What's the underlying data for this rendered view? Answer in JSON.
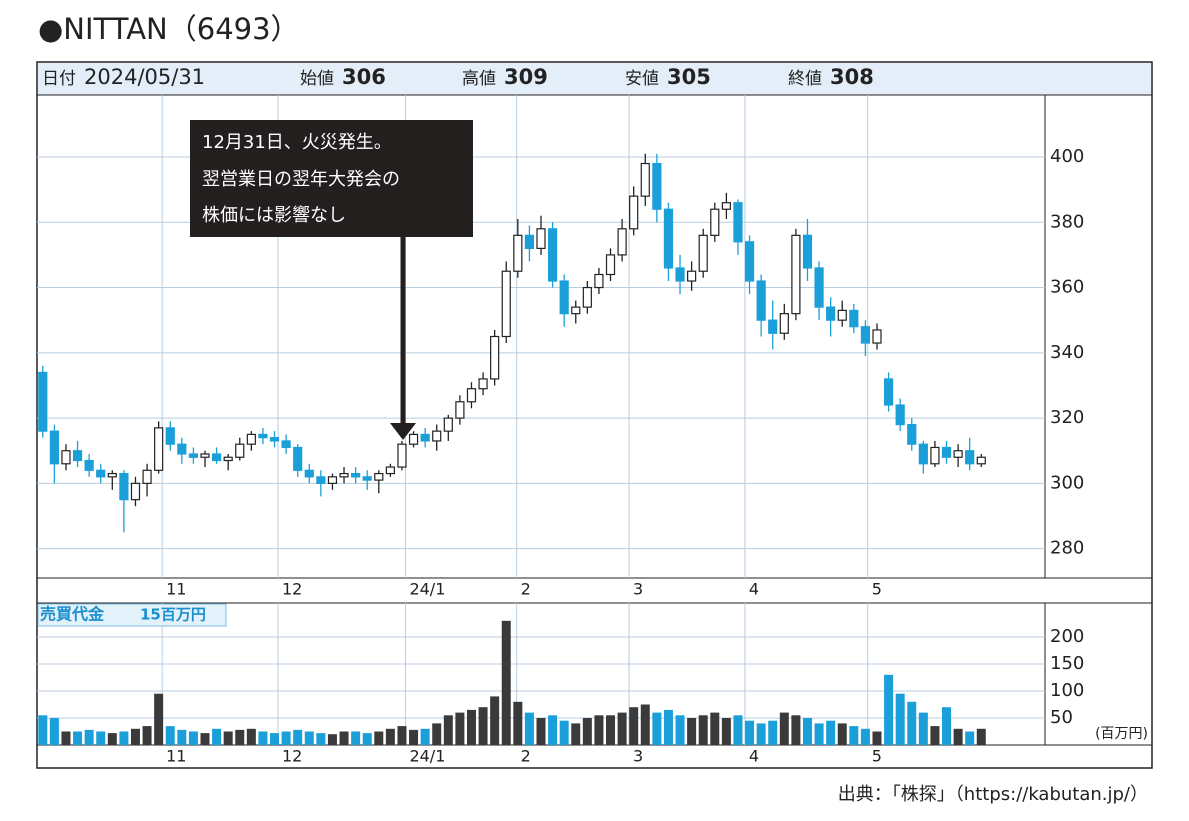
{
  "chart_data": {
    "type": "candlestick",
    "title": "●NITTAN（6493）",
    "header": [
      {
        "label": "日付",
        "value": "2024/05/31"
      },
      {
        "label": "始値",
        "value": 306
      },
      {
        "label": "高値",
        "value": 309
      },
      {
        "label": "安値",
        "value": 305
      },
      {
        "label": "終値",
        "value": 308
      }
    ],
    "open": [
      334,
      316,
      306,
      310,
      307,
      304,
      302,
      303,
      295,
      300,
      304,
      317,
      312,
      309,
      308,
      309,
      307,
      308,
      312,
      315,
      314,
      313,
      311,
      304,
      302,
      300,
      302,
      303,
      302,
      301,
      303,
      305,
      312,
      315,
      313,
      316,
      320,
      325,
      329,
      332,
      345,
      365,
      376,
      372,
      378,
      362,
      352,
      354,
      360,
      364,
      370,
      378,
      388,
      398,
      384,
      366,
      362,
      365,
      376,
      384,
      386,
      374,
      362,
      350,
      346,
      352,
      376,
      366,
      354,
      350,
      353,
      348,
      343,
      332,
      324,
      318,
      312,
      306,
      311,
      308,
      310,
      306
    ],
    "high": [
      336,
      318,
      312,
      313,
      309,
      306,
      304,
      304,
      302,
      306,
      319,
      319,
      314,
      311,
      310,
      311,
      309,
      314,
      316,
      317,
      316,
      315,
      312,
      306,
      304,
      303,
      305,
      305,
      304,
      304,
      306,
      313,
      316,
      317,
      318,
      321,
      327,
      331,
      334,
      347,
      368,
      381,
      379,
      382,
      380,
      364,
      356,
      362,
      366,
      372,
      381,
      391,
      401,
      401,
      386,
      370,
      368,
      378,
      386,
      389,
      387,
      376,
      364,
      356,
      355,
      378,
      381,
      368,
      357,
      356,
      355,
      350,
      349,
      334,
      326,
      320,
      313,
      313,
      313,
      312,
      314,
      309
    ],
    "low": [
      314,
      300,
      304,
      305,
      302,
      300,
      298,
      285,
      293,
      296,
      303,
      310,
      306,
      306,
      305,
      306,
      304,
      307,
      310,
      312,
      311,
      309,
      302,
      300,
      296,
      298,
      300,
      300,
      298,
      297,
      302,
      304,
      311,
      311,
      310,
      313,
      318,
      323,
      327,
      330,
      343,
      363,
      368,
      370,
      360,
      348,
      349,
      352,
      358,
      362,
      368,
      376,
      385,
      380,
      362,
      358,
      359,
      363,
      374,
      381,
      370,
      358,
      345,
      341,
      344,
      350,
      362,
      350,
      345,
      348,
      346,
      339,
      341,
      322,
      316,
      310,
      303,
      305,
      306,
      305,
      304,
      305
    ],
    "close": [
      316,
      306,
      310,
      307,
      304,
      302,
      303,
      295,
      300,
      304,
      317,
      312,
      309,
      308,
      309,
      307,
      308,
      312,
      315,
      314,
      313,
      311,
      304,
      302,
      300,
      302,
      303,
      302,
      301,
      303,
      305,
      312,
      315,
      313,
      316,
      320,
      325,
      329,
      332,
      345,
      365,
      376,
      372,
      378,
      362,
      352,
      354,
      360,
      364,
      370,
      378,
      388,
      398,
      384,
      366,
      362,
      365,
      376,
      384,
      386,
      374,
      362,
      350,
      346,
      352,
      376,
      366,
      354,
      350,
      353,
      348,
      343,
      347,
      324,
      318,
      312,
      306,
      311,
      308,
      310,
      306,
      308
    ],
    "colors": {
      "up": "#ffffff",
      "down": "#1a9fd9",
      "outline": "#222222"
    },
    "xlim": [
      -0.5,
      86.5
    ],
    "xticks": [
      {
        "value": 10.3,
        "label": "11"
      },
      {
        "value": 20.3,
        "label": "12"
      },
      {
        "value": 31.3,
        "label": "24/1"
      },
      {
        "value": 40.9,
        "label": "2"
      },
      {
        "value": 50.6,
        "label": "3"
      },
      {
        "value": 60.6,
        "label": "4"
      },
      {
        "value": 71.2,
        "label": "5"
      }
    ],
    "ylim": [
      271,
      419
    ],
    "yticks": [
      280,
      300,
      320,
      340,
      360,
      380,
      400
    ],
    "grid": true,
    "annotation": [
      "12月31日、火災発生。",
      "翌営業日の翌年大発会の",
      "株価には影響なし"
    ],
    "volume": {
      "label": "売買代金",
      "sublabel": "15百万円",
      "unit": "(百万円)",
      "values": [
        55,
        50,
        25,
        25,
        28,
        25,
        22,
        25,
        30,
        35,
        95,
        35,
        28,
        25,
        22,
        30,
        25,
        28,
        30,
        25,
        22,
        25,
        28,
        25,
        22,
        20,
        25,
        25,
        22,
        25,
        30,
        35,
        28,
        30,
        40,
        55,
        60,
        65,
        70,
        90,
        230,
        80,
        60,
        50,
        55,
        45,
        40,
        50,
        55,
        55,
        60,
        70,
        75,
        60,
        65,
        55,
        50,
        55,
        60,
        50,
        55,
        45,
        40,
        45,
        60,
        55,
        50,
        40,
        45,
        40,
        35,
        30,
        25,
        130,
        95,
        80,
        60,
        35,
        70,
        30,
        25,
        30
      ],
      "colors": {
        "up": "#3a3a3a",
        "down": "#1a9fd9"
      },
      "ylim": [
        0,
        263
      ],
      "yticks": [
        50,
        100,
        150,
        200
      ]
    },
    "source": "出典：「株探」（https://kabutan.jp/）"
  }
}
